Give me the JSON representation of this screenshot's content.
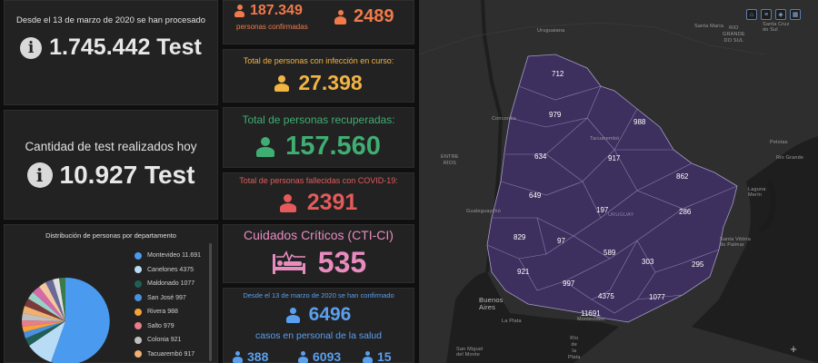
{
  "colors": {
    "orange": "#f07a4a",
    "yellow": "#f2b443",
    "green": "#3fae72",
    "red": "#e55a5a",
    "pink": "#e88cc0",
    "blue": "#5aa0f0",
    "map_purple": "#3d2f5e"
  },
  "card1": {
    "title": "Desde el 13 de marzo de 2020 se han procesado",
    "value": "1.745.442 Test",
    "icon": "info-icon"
  },
  "card2": {
    "title": "Cantidad de test realizados hoy",
    "value": "10.927 Test",
    "icon": "info-icon"
  },
  "confirmed": {
    "value": "187.349",
    "caption": "personas confirmadas",
    "today": "2489"
  },
  "active": {
    "title": "Total de personas con infección en curso:",
    "value": "27.398"
  },
  "recovered": {
    "title": "Total de personas recuperadas:",
    "value": "157.560"
  },
  "deceased": {
    "title": "Total de personas fallecidas con COVID-19:",
    "value": "2391"
  },
  "critical": {
    "title": "Cuidados Críticos (CTI-CI)",
    "value": "535",
    "icon": "hospital-bed-icon"
  },
  "health_staff": {
    "title": "Desde el 13 de marzo de 2020 se han confirmado",
    "value": "6496",
    "caption": "casos en personal de la salud",
    "sub_values": [
      "388",
      "6093",
      "15"
    ]
  },
  "donut": {
    "title": "Distribución de personas por departamento",
    "legend": [
      {
        "label": "Montevideo",
        "value": "11.691",
        "color": "#4a9bef"
      },
      {
        "label": "Canelones",
        "value": "4375",
        "color": "#b8dcf5"
      },
      {
        "label": "Maldonado",
        "value": "1077",
        "color": "#1f5f56"
      },
      {
        "label": "San José",
        "value": "997",
        "color": "#4a8fe0"
      },
      {
        "label": "Rivera",
        "value": "988",
        "color": "#f5a23a"
      },
      {
        "label": "Salto",
        "value": "979",
        "color": "#e87d8b"
      },
      {
        "label": "Colonia",
        "value": "921",
        "color": "#bfbfbf"
      },
      {
        "label": "Tacuarembó",
        "value": "917",
        "color": "#f0b070"
      }
    ]
  },
  "map": {
    "departments": [
      {
        "name": "artigas",
        "value": "712"
      },
      {
        "name": "salto",
        "value": "979"
      },
      {
        "name": "rivera",
        "value": "988"
      },
      {
        "name": "paysandu",
        "value": "634"
      },
      {
        "name": "tacuarembo",
        "value": "917"
      },
      {
        "name": "cerro-largo",
        "value": "862"
      },
      {
        "name": "rio-negro",
        "value": "649"
      },
      {
        "name": "durazno",
        "value": "197"
      },
      {
        "name": "treinta-y-tres",
        "value": "286"
      },
      {
        "name": "soriano",
        "value": "829"
      },
      {
        "name": "flores",
        "value": "97"
      },
      {
        "name": "florida",
        "value": "589"
      },
      {
        "name": "colonia",
        "value": "921"
      },
      {
        "name": "san-jose",
        "value": "997"
      },
      {
        "name": "lavalleja",
        "value": "303"
      },
      {
        "name": "rocha",
        "value": "295"
      },
      {
        "name": "canelones",
        "value": "4375"
      },
      {
        "name": "maldonado",
        "value": "1077"
      },
      {
        "name": "montevideo",
        "value": "11691"
      }
    ],
    "place_labels": {
      "uruguaiana": "Uruguaiana",
      "santa_maria": "Santa María",
      "santa_cruz": "Santa Cruz\ndo Sul",
      "rio_grande_sul": "RIO\nGRANDE\nDO SUL",
      "concordia": "Concordia",
      "tacuarembo": "Tacuarembó",
      "pelotas": "Pelotas",
      "rio_grande": "Rio Grande",
      "entre_rios": "ENTRE\nRÍOS",
      "uruguay": "URUGUAY",
      "gualeguaychu": "Gualeguaychú",
      "laguna_merin": "Laguna\nMerín",
      "santa_vitoria": "Santa Vitória\ndo Palmar",
      "buenos_aires": "Buenos\nAires",
      "la_plata": "La Plata",
      "montevideo": "Montevideo",
      "rio_de_la_plata": "Río\nde\nla\nPlata",
      "san_miguel": "San Miguel\ndel Monte"
    }
  }
}
